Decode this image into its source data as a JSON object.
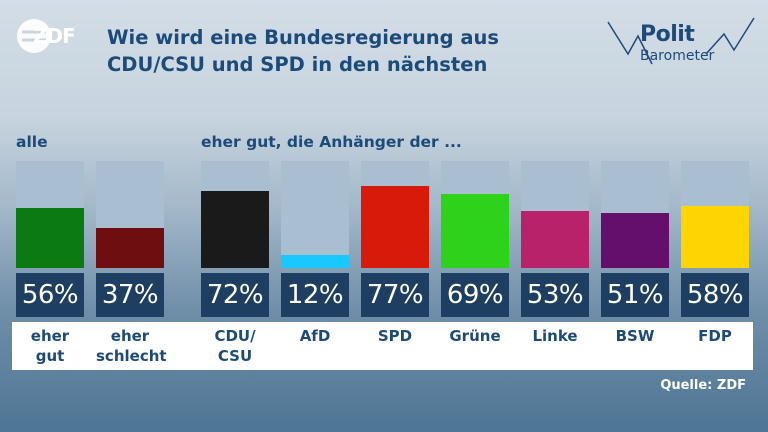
{
  "header": {
    "logo_text": "ZDF",
    "title": "Wie wird eine Bundesregierung aus CDU/CSU und SPD in den nächsten",
    "brand_line1": "Polit",
    "brand_line2": "Barometer"
  },
  "groups": {
    "left": "alle",
    "right": "eher gut, die Anhänger der ..."
  },
  "source": "Quelle: ZDF",
  "chart_data": {
    "type": "bar",
    "title": "Wie wird eine Bundesregierung aus CDU/CSU und SPD in den nächsten",
    "ylim": [
      0,
      100
    ],
    "categories": [
      "eher gut",
      "eher schlecht",
      "CDU/ CSU",
      "AfD",
      "SPD",
      "Grüne",
      "Linke",
      "BSW",
      "FDP"
    ],
    "values": [
      56,
      37,
      72,
      12,
      77,
      69,
      53,
      51,
      58
    ],
    "labels": [
      "56%",
      "37%",
      "72%",
      "12%",
      "77%",
      "69%",
      "53%",
      "51%",
      "58%"
    ],
    "colors": [
      "#0b7a12",
      "#6e0e10",
      "#1a1a1a",
      "#18c8ff",
      "#d81a0a",
      "#2fd21a",
      "#b8226a",
      "#64106a",
      "#ffd500"
    ],
    "groups": [
      "alle",
      "eher gut, die Anhänger der ..."
    ]
  }
}
